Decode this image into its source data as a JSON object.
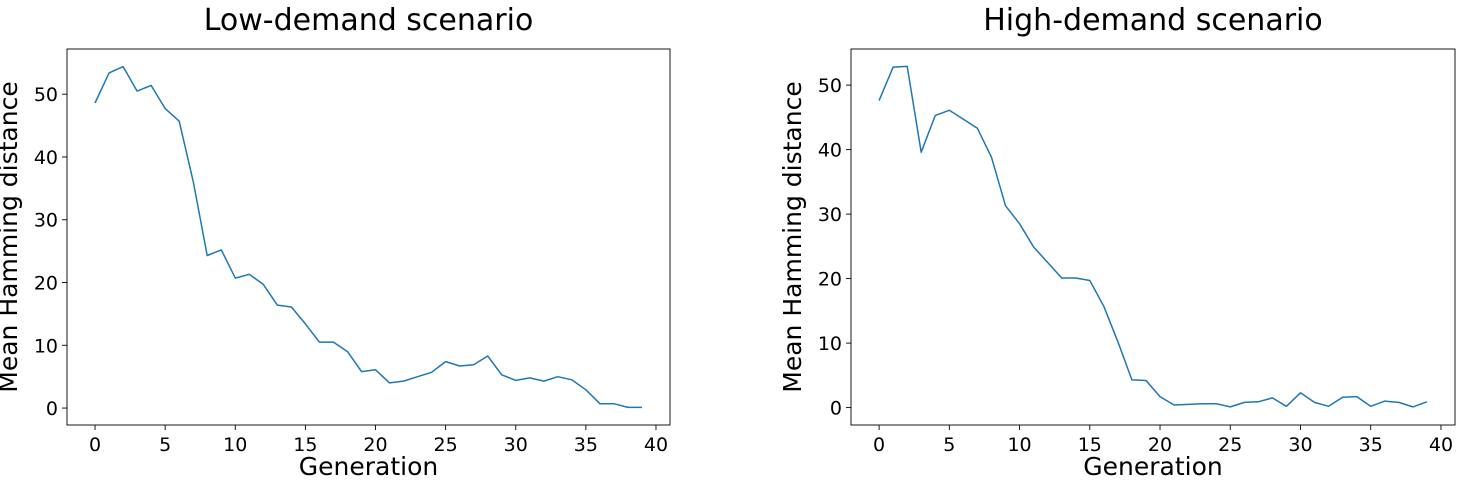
{
  "chart_data": [
    {
      "type": "line",
      "title": "Low-demand scenario",
      "xlabel": "Generation",
      "ylabel": "Mean Hamming distance",
      "xlim": [
        -2,
        41
      ],
      "ylim": [
        -2.7,
        57.2
      ],
      "xticks": [
        0,
        5,
        10,
        15,
        20,
        25,
        30,
        35,
        40
      ],
      "yticks": [
        0,
        10,
        20,
        30,
        40,
        50
      ],
      "grid": false,
      "color": "#1f77b4",
      "x": [
        0,
        1,
        2,
        3,
        4,
        5,
        6,
        7,
        8,
        9,
        10,
        11,
        12,
        13,
        14,
        15,
        16,
        17,
        18,
        19,
        20,
        21,
        22,
        23,
        24,
        25,
        26,
        27,
        28,
        29,
        30,
        31,
        32,
        33,
        34,
        35,
        36,
        37,
        38,
        39
      ],
      "y": [
        48.6,
        53.4,
        54.4,
        50.5,
        51.4,
        47.7,
        45.7,
        36.1,
        24.3,
        25.2,
        20.7,
        21.3,
        19.7,
        16.4,
        16.1,
        13.4,
        10.5,
        10.5,
        9.0,
        5.8,
        6.1,
        4.0,
        4.3,
        5.0,
        5.7,
        7.4,
        6.7,
        6.9,
        8.3,
        5.3,
        4.4,
        4.8,
        4.3,
        5.0,
        4.5,
        2.9,
        0.7,
        0.7,
        0.1,
        0.1
      ]
    },
    {
      "type": "line",
      "title": "High-demand scenario",
      "xlabel": "Generation",
      "ylabel": "Mean Hamming distance",
      "xlim": [
        -2,
        41
      ],
      "ylim": [
        -2.7,
        55.6
      ],
      "xticks": [
        0,
        5,
        10,
        15,
        20,
        25,
        30,
        35,
        40
      ],
      "yticks": [
        0,
        10,
        20,
        30,
        40,
        50
      ],
      "grid": false,
      "color": "#1f77b4",
      "x": [
        0,
        1,
        2,
        3,
        4,
        5,
        6,
        7,
        8,
        9,
        10,
        11,
        12,
        13,
        14,
        15,
        16,
        17,
        18,
        19,
        20,
        21,
        22,
        23,
        24,
        25,
        26,
        27,
        28,
        29,
        30,
        31,
        32,
        33,
        34,
        35,
        36,
        37,
        38,
        39
      ],
      "y": [
        47.6,
        52.8,
        52.9,
        39.6,
        45.3,
        46.1,
        44.7,
        43.3,
        38.8,
        31.3,
        28.5,
        24.9,
        22.5,
        20.1,
        20.1,
        19.7,
        15.7,
        10.2,
        4.3,
        4.2,
        1.7,
        0.4,
        0.5,
        0.6,
        0.6,
        0.1,
        0.8,
        0.9,
        1.5,
        0.2,
        2.3,
        0.8,
        0.2,
        1.6,
        1.7,
        0.2,
        1.0,
        0.8,
        0.1,
        0.9
      ]
    }
  ]
}
